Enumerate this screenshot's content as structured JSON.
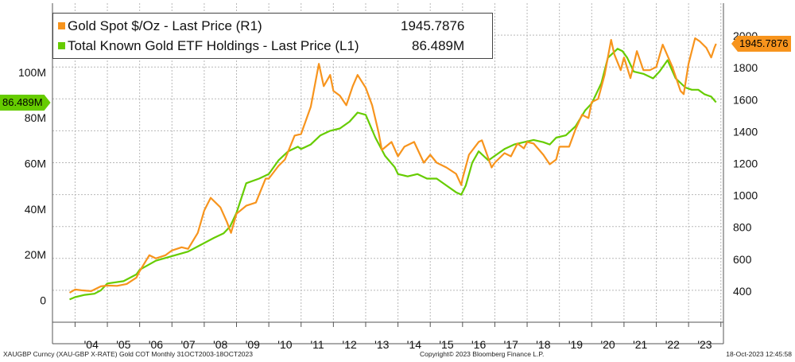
{
  "chart_data": {
    "type": "line",
    "title": "",
    "years": [
      "'04",
      "'05",
      "'06",
      "'07",
      "'08",
      "'09",
      "'10",
      "'11",
      "'12",
      "'13",
      "'14",
      "'15",
      "'16",
      "'17",
      "'18",
      "'19",
      "'20",
      "'21",
      "'22",
      "'23"
    ],
    "left_axis": {
      "ticks": [
        0,
        20,
        40,
        60,
        80,
        100
      ],
      "tick_labels": [
        "0",
        "20M",
        "40M",
        "60M",
        "80M",
        "100M"
      ],
      "range": [
        -10,
        130
      ]
    },
    "right_axis": {
      "ticks": [
        400,
        600,
        800,
        1000,
        1200,
        1400,
        1600,
        1800,
        2000
      ],
      "tick_labels": [
        "400",
        "600",
        "800",
        "1000",
        "1200",
        "1400",
        "1600",
        "1800",
        "2000"
      ],
      "range": [
        200,
        2200
      ]
    },
    "x_range": [
      2003.3,
      2024.08
    ],
    "series": [
      {
        "name": "Gold Spot $/Oz - Last Price (R1)",
        "axis": "right",
        "color": "#f7941d",
        "last_value": "1945.7876",
        "points": [
          [
            2003.83,
            385
          ],
          [
            2004.0,
            405
          ],
          [
            2004.2,
            400
          ],
          [
            2004.5,
            395
          ],
          [
            2004.8,
            425
          ],
          [
            2005.0,
            430
          ],
          [
            2005.3,
            428
          ],
          [
            2005.6,
            440
          ],
          [
            2005.9,
            480
          ],
          [
            2006.0,
            520
          ],
          [
            2006.3,
            620
          ],
          [
            2006.5,
            600
          ],
          [
            2006.8,
            620
          ],
          [
            2007.0,
            650
          ],
          [
            2007.3,
            670
          ],
          [
            2007.5,
            660
          ],
          [
            2007.8,
            760
          ],
          [
            2008.0,
            900
          ],
          [
            2008.2,
            980
          ],
          [
            2008.5,
            920
          ],
          [
            2008.7,
            830
          ],
          [
            2008.83,
            760
          ],
          [
            2009.0,
            880
          ],
          [
            2009.3,
            930
          ],
          [
            2009.6,
            950
          ],
          [
            2009.9,
            1100
          ],
          [
            2010.0,
            1100
          ],
          [
            2010.3,
            1180
          ],
          [
            2010.5,
            1220
          ],
          [
            2010.8,
            1370
          ],
          [
            2011.0,
            1380
          ],
          [
            2011.3,
            1550
          ],
          [
            2011.55,
            1820
          ],
          [
            2011.7,
            1680
          ],
          [
            2011.9,
            1750
          ],
          [
            2012.0,
            1650
          ],
          [
            2012.2,
            1620
          ],
          [
            2012.4,
            1560
          ],
          [
            2012.6,
            1680
          ],
          [
            2012.75,
            1750
          ],
          [
            2013.0,
            1670
          ],
          [
            2013.2,
            1560
          ],
          [
            2013.4,
            1390
          ],
          [
            2013.5,
            1280
          ],
          [
            2013.8,
            1330
          ],
          [
            2014.0,
            1240
          ],
          [
            2014.2,
            1300
          ],
          [
            2014.5,
            1330
          ],
          [
            2014.8,
            1200
          ],
          [
            2015.0,
            1250
          ],
          [
            2015.2,
            1200
          ],
          [
            2015.5,
            1170
          ],
          [
            2015.8,
            1130
          ],
          [
            2015.96,
            1060
          ],
          [
            2016.0,
            1100
          ],
          [
            2016.2,
            1250
          ],
          [
            2016.5,
            1330
          ],
          [
            2016.6,
            1340
          ],
          [
            2016.9,
            1170
          ],
          [
            2017.0,
            1200
          ],
          [
            2017.3,
            1260
          ],
          [
            2017.5,
            1240
          ],
          [
            2017.7,
            1320
          ],
          [
            2017.9,
            1290
          ],
          [
            2018.0,
            1330
          ],
          [
            2018.2,
            1320
          ],
          [
            2018.5,
            1250
          ],
          [
            2018.7,
            1190
          ],
          [
            2018.9,
            1220
          ],
          [
            2019.0,
            1300
          ],
          [
            2019.3,
            1300
          ],
          [
            2019.5,
            1410
          ],
          [
            2019.7,
            1500
          ],
          [
            2019.9,
            1480
          ],
          [
            2020.0,
            1580
          ],
          [
            2020.2,
            1600
          ],
          [
            2020.4,
            1750
          ],
          [
            2020.6,
            1970
          ],
          [
            2020.7,
            1880
          ],
          [
            2020.9,
            1780
          ],
          [
            2021.0,
            1860
          ],
          [
            2021.2,
            1730
          ],
          [
            2021.4,
            1900
          ],
          [
            2021.6,
            1780
          ],
          [
            2021.8,
            1780
          ],
          [
            2022.0,
            1800
          ],
          [
            2022.2,
            1940
          ],
          [
            2022.5,
            1800
          ],
          [
            2022.75,
            1650
          ],
          [
            2022.85,
            1630
          ],
          [
            2023.0,
            1820
          ],
          [
            2023.2,
            1980
          ],
          [
            2023.35,
            1960
          ],
          [
            2023.55,
            1920
          ],
          [
            2023.7,
            1860
          ],
          [
            2023.8,
            1920
          ],
          [
            2023.85,
            1945.79
          ]
        ]
      },
      {
        "name": "Total Known Gold ETF Holdings - Last Price (L1)",
        "axis": "left",
        "color": "#66cc00",
        "last_value": "86.489M",
        "points": [
          [
            2003.83,
            0
          ],
          [
            2004.0,
            1
          ],
          [
            2004.3,
            2
          ],
          [
            2004.6,
            2.5
          ],
          [
            2004.8,
            4
          ],
          [
            2005.0,
            7
          ],
          [
            2005.5,
            8
          ],
          [
            2005.9,
            11
          ],
          [
            2006.0,
            13
          ],
          [
            2006.5,
            17
          ],
          [
            2007.0,
            19
          ],
          [
            2007.5,
            21
          ],
          [
            2007.9,
            24
          ],
          [
            2008.3,
            27
          ],
          [
            2008.6,
            29
          ],
          [
            2008.8,
            32
          ],
          [
            2009.0,
            38
          ],
          [
            2009.3,
            51
          ],
          [
            2009.7,
            53
          ],
          [
            2010.0,
            55
          ],
          [
            2010.3,
            61
          ],
          [
            2010.6,
            65
          ],
          [
            2010.9,
            67
          ],
          [
            2011.0,
            66
          ],
          [
            2011.3,
            68
          ],
          [
            2011.6,
            72
          ],
          [
            2011.9,
            74
          ],
          [
            2012.2,
            75
          ],
          [
            2012.5,
            78
          ],
          [
            2012.75,
            82
          ],
          [
            2013.0,
            81
          ],
          [
            2013.3,
            71
          ],
          [
            2013.6,
            63
          ],
          [
            2013.9,
            58
          ],
          [
            2014.0,
            55
          ],
          [
            2014.3,
            54
          ],
          [
            2014.6,
            55
          ],
          [
            2014.9,
            53
          ],
          [
            2015.2,
            53
          ],
          [
            2015.5,
            50
          ],
          [
            2015.8,
            47
          ],
          [
            2015.96,
            46
          ],
          [
            2016.1,
            50
          ],
          [
            2016.3,
            60
          ],
          [
            2016.5,
            65
          ],
          [
            2016.8,
            61
          ],
          [
            2017.0,
            63
          ],
          [
            2017.3,
            66
          ],
          [
            2017.6,
            68
          ],
          [
            2017.9,
            69
          ],
          [
            2018.2,
            70
          ],
          [
            2018.5,
            69
          ],
          [
            2018.7,
            68
          ],
          [
            2018.9,
            71
          ],
          [
            2019.2,
            72
          ],
          [
            2019.5,
            76
          ],
          [
            2019.8,
            83
          ],
          [
            2020.0,
            86
          ],
          [
            2020.3,
            95
          ],
          [
            2020.5,
            106
          ],
          [
            2020.8,
            110
          ],
          [
            2020.95,
            109
          ],
          [
            2021.1,
            106
          ],
          [
            2021.3,
            100
          ],
          [
            2021.6,
            99
          ],
          [
            2021.9,
            97
          ],
          [
            2022.1,
            100
          ],
          [
            2022.35,
            105
          ],
          [
            2022.6,
            97
          ],
          [
            2022.9,
            93
          ],
          [
            2023.1,
            92
          ],
          [
            2023.3,
            92
          ],
          [
            2023.5,
            90
          ],
          [
            2023.7,
            89
          ],
          [
            2023.85,
            86.489
          ]
        ]
      }
    ]
  },
  "legend": {
    "gold_label": "Gold Spot $/Oz - Last Price (R1)",
    "gold_value": "1945.7876",
    "etf_label": "Total Known Gold ETF Holdings - Last Price (L1)",
    "etf_value": "86.489M"
  },
  "callouts": {
    "gold": "1945.7876",
    "etf": "86.489M"
  },
  "footer": {
    "left": "XAUGBP Curncy (XAU-GBP X-RATE) Gold COT  Monthly 31OCT2003-18OCT2023",
    "center": "Copyright© 2023 Bloomberg Finance L.P.",
    "right": "18-Oct-2023 12:45:58"
  },
  "colors": {
    "gold": "#f7941d",
    "etf": "#66cc00",
    "grid": "#b8b8b8",
    "axis": "#555555"
  }
}
